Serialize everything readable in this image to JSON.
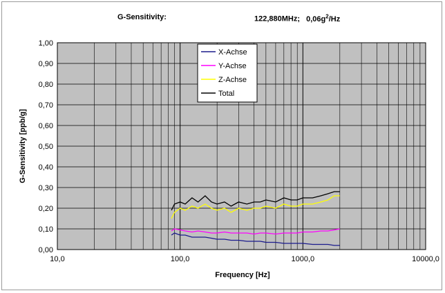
{
  "chart_data": {
    "type": "line",
    "title": {
      "label": "G-Sensitivity:",
      "frequency": "122,880MHz;",
      "psd_value": "0,06g",
      "psd_exp": "2",
      "psd_unit": "/Hz"
    },
    "xlabel": "Frequency [Hz]",
    "ylabel": "G-Sensitivity [ppb/g]",
    "x_scale": "log",
    "xlim": [
      10,
      10000
    ],
    "ylim": [
      0,
      1.0
    ],
    "x_ticks": [
      10,
      100,
      1000,
      10000
    ],
    "x_tick_labels": [
      "10,0",
      "100,0",
      "1000,0",
      "10000,0"
    ],
    "y_ticks": [
      0,
      0.1,
      0.2,
      0.3,
      0.4,
      0.5,
      0.6,
      0.7,
      0.8,
      0.9,
      1.0
    ],
    "y_tick_labels": [
      "0,00",
      "0,10",
      "0,20",
      "0,30",
      "0,40",
      "0,50",
      "0,60",
      "0,70",
      "0,80",
      "0,90",
      "1,00"
    ],
    "grid": true,
    "legend_position": "top-center",
    "plot_background": "#c0c0c0",
    "series": [
      {
        "name": "X-Achse",
        "color": "#1a1a8c",
        "x": [
          85,
          90,
          100,
          110,
          125,
          140,
          160,
          180,
          200,
          230,
          260,
          300,
          350,
          400,
          450,
          500,
          600,
          700,
          800,
          900,
          1000,
          1200,
          1400,
          1600,
          1800,
          2000
        ],
        "values": [
          0.07,
          0.08,
          0.07,
          0.07,
          0.06,
          0.06,
          0.06,
          0.055,
          0.05,
          0.05,
          0.045,
          0.045,
          0.04,
          0.04,
          0.04,
          0.035,
          0.035,
          0.03,
          0.03,
          0.03,
          0.03,
          0.025,
          0.025,
          0.025,
          0.02,
          0.02
        ]
      },
      {
        "name": "Y-Achse",
        "color": "#ff00ff",
        "x": [
          85,
          90,
          100,
          110,
          125,
          140,
          160,
          180,
          200,
          230,
          260,
          300,
          350,
          400,
          450,
          500,
          600,
          700,
          800,
          900,
          1000,
          1200,
          1400,
          1600,
          1800,
          2000
        ],
        "values": [
          0.09,
          0.1,
          0.095,
          0.09,
          0.085,
          0.09,
          0.085,
          0.08,
          0.08,
          0.085,
          0.08,
          0.08,
          0.08,
          0.075,
          0.08,
          0.08,
          0.075,
          0.08,
          0.08,
          0.08,
          0.085,
          0.085,
          0.09,
          0.09,
          0.095,
          0.1
        ]
      },
      {
        "name": "Z-Achse",
        "color": "#ffff00",
        "x": [
          85,
          90,
          100,
          110,
          125,
          140,
          160,
          180,
          200,
          230,
          260,
          300,
          350,
          400,
          450,
          500,
          600,
          700,
          800,
          900,
          1000,
          1200,
          1400,
          1600,
          1800,
          2000
        ],
        "values": [
          0.15,
          0.18,
          0.2,
          0.19,
          0.21,
          0.2,
          0.22,
          0.2,
          0.19,
          0.2,
          0.18,
          0.2,
          0.19,
          0.2,
          0.2,
          0.21,
          0.2,
          0.22,
          0.21,
          0.21,
          0.22,
          0.22,
          0.23,
          0.24,
          0.26,
          0.26
        ]
      },
      {
        "name": "Total",
        "color": "#000000",
        "x": [
          85,
          90,
          100,
          110,
          125,
          140,
          160,
          180,
          200,
          230,
          260,
          300,
          350,
          400,
          450,
          500,
          600,
          700,
          800,
          900,
          1000,
          1200,
          1400,
          1600,
          1800,
          2000
        ],
        "values": [
          0.19,
          0.22,
          0.23,
          0.22,
          0.25,
          0.23,
          0.26,
          0.23,
          0.22,
          0.23,
          0.21,
          0.23,
          0.22,
          0.23,
          0.23,
          0.24,
          0.23,
          0.25,
          0.24,
          0.24,
          0.25,
          0.25,
          0.26,
          0.27,
          0.28,
          0.28
        ]
      }
    ]
  }
}
